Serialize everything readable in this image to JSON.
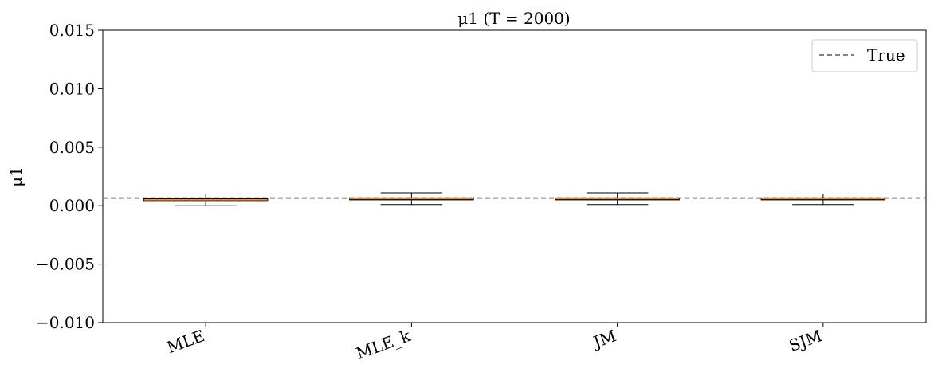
{
  "chart_data": {
    "type": "box",
    "title": "μ1  (T = 2000)",
    "ylabel": "μ1",
    "xlabel": "",
    "ylim": [
      -0.01,
      0.015
    ],
    "yticks": [
      -0.01,
      -0.005,
      0.0,
      0.005,
      0.01,
      0.015
    ],
    "ytick_labels": [
      "−0.010",
      "−0.005",
      "0.000",
      "0.005",
      "0.010",
      "0.015"
    ],
    "categories": [
      "MLE",
      "MLE_k",
      "JM",
      "SJM"
    ],
    "boxes": [
      {
        "category": "MLE",
        "whislo": 0.0,
        "q1": 0.00045,
        "median": 0.0005,
        "q3": 0.0006,
        "whishi": 0.001
      },
      {
        "category": "MLE_k",
        "whislo": 0.0001,
        "q1": 0.00055,
        "median": 0.0006,
        "q3": 0.00065,
        "whishi": 0.0011
      },
      {
        "category": "JM",
        "whislo": 0.0001,
        "q1": 0.00055,
        "median": 0.0006,
        "q3": 0.00065,
        "whishi": 0.0011
      },
      {
        "category": "SJM",
        "whislo": 0.0001,
        "q1": 0.00055,
        "median": 0.0006,
        "q3": 0.00065,
        "whishi": 0.001
      }
    ],
    "reference_line": {
      "label": "True",
      "value": 0.00065,
      "style": "dashed",
      "color": "#808080"
    },
    "legend": {
      "position": "top-right",
      "entries": [
        "True"
      ]
    },
    "grid": false,
    "colors": {
      "box": "#000000",
      "median": "#ff8c00",
      "reference": "#808080"
    }
  }
}
